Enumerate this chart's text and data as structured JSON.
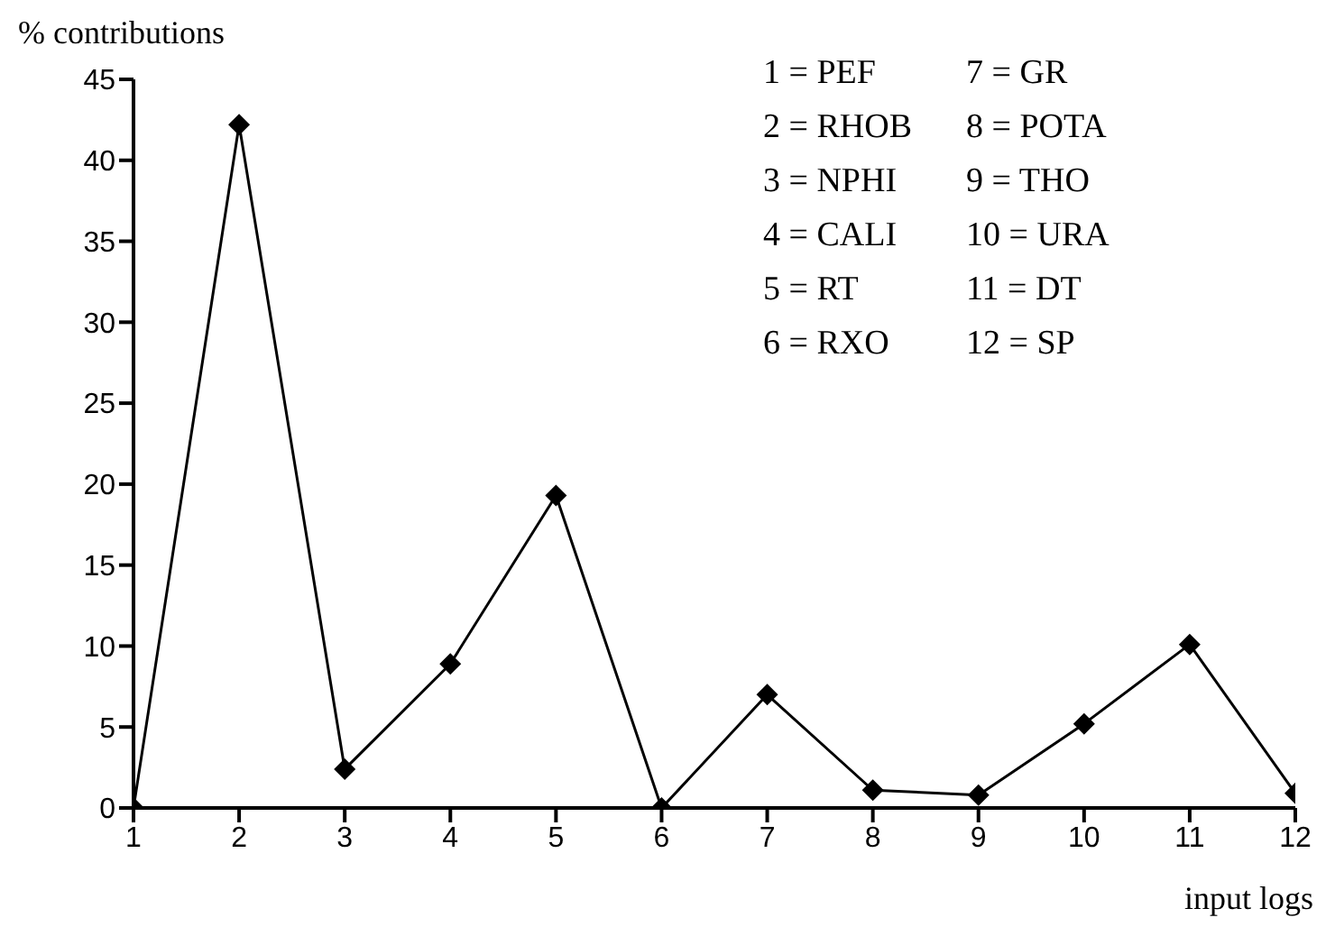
{
  "chart_data": {
    "type": "line",
    "xlabel": "input logs",
    "ylabel": "% contributions",
    "x": [
      1,
      2,
      3,
      4,
      5,
      6,
      7,
      8,
      9,
      10,
      11,
      12
    ],
    "series": [
      {
        "color": "#000000",
        "values": [
          0,
          42.2,
          2.4,
          8.9,
          19.3,
          0,
          7.0,
          1.1,
          0.8,
          5.2,
          10.1,
          0.9
        ]
      }
    ],
    "xlim": [
      1,
      12
    ],
    "xticks": [
      1,
      2,
      3,
      4,
      5,
      6,
      7,
      8,
      9,
      10,
      11,
      12
    ],
    "ylim": [
      0,
      45
    ],
    "yticks": [
      0,
      5,
      10,
      15,
      20,
      25,
      30,
      35,
      40,
      45
    ],
    "grid": false,
    "legend": false,
    "marker": "diamond",
    "line_style": "solid",
    "annotations": [
      "1 = PEF",
      "2 = RHOB",
      "3 = NPHI",
      "4 = CALI",
      "5 = RT",
      "6 = RXO",
      "7 = GR",
      "8 = POTA",
      "9 = THO",
      "10 = URA",
      "11 = DT",
      "12 = SP"
    ]
  }
}
